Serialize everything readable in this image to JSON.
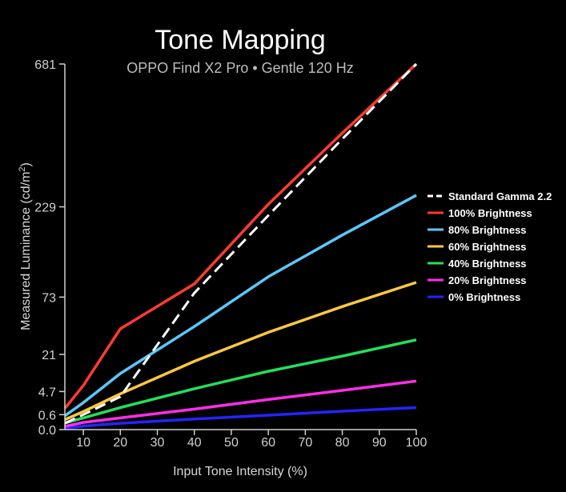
{
  "chart_data": {
    "type": "line",
    "title": "Tone Mapping",
    "subtitle": "OPPO Find X2 Pro  •  Gentle 120 Hz",
    "xlabel": "Input Tone Intensity (%)",
    "ylabel_main": "Measured Luminance (cd/m",
    "ylabel_sup": "2",
    "ylabel_close": ")",
    "x_ticks": [
      10,
      20,
      30,
      40,
      50,
      60,
      70,
      80,
      90,
      100
    ],
    "y_ticks": [
      {
        "value": 0,
        "label": "0.0"
      },
      {
        "value": 0.6,
        "label": "0.6"
      },
      {
        "value": 4.7,
        "label": "4.7"
      },
      {
        "value": 21,
        "label": "21"
      },
      {
        "value": 73,
        "label": "73"
      },
      {
        "value": 229,
        "label": "229"
      },
      {
        "value": 681,
        "label": "681"
      }
    ],
    "xlim": [
      5,
      100
    ],
    "ylim": [
      0,
      681
    ],
    "y_scale": "gamma-2.2",
    "grid": false,
    "legend_position": "right",
    "x": [
      5,
      10,
      20,
      40,
      60,
      80,
      100
    ],
    "series": [
      {
        "name": "Standard Gamma 2.2",
        "color": "#ffffff",
        "dash": true,
        "values": [
          0.09,
          0.6,
          3.4,
          78,
          210,
          411,
          681
        ]
      },
      {
        "name": "100% Brightness",
        "color": "#ff3b30",
        "dash": false,
        "values": [
          1.3,
          6.5,
          40,
          90,
          235,
          430,
          681
        ]
      },
      {
        "name": "80% Brightness",
        "color": "#5ac8fa",
        "dash": false,
        "values": [
          0.5,
          2.2,
          11,
          42,
          100,
          170,
          256
        ]
      },
      {
        "name": "60% Brightness",
        "color": "#ffc83d",
        "dash": false,
        "values": [
          0.25,
          0.9,
          4.1,
          17,
          37,
          62,
          92
        ]
      },
      {
        "name": "40% Brightness",
        "color": "#22e05a",
        "dash": false,
        "values": [
          0.1,
          0.35,
          1.4,
          5.5,
          12,
          20,
          31
        ]
      },
      {
        "name": "20% Brightness",
        "color": "#ff2ee6",
        "dash": false,
        "values": [
          0.02,
          0.12,
          0.35,
          1.2,
          2.8,
          5,
          8
        ]
      },
      {
        "name": "0% Brightness",
        "color": "#2424ff",
        "dash": false,
        "values": [
          0.003,
          0.025,
          0.09,
          0.28,
          0.55,
          0.95,
          1.4
        ]
      }
    ]
  }
}
